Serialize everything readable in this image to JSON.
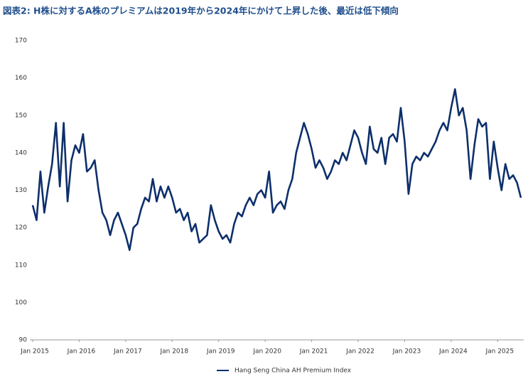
{
  "chart_data": {
    "type": "line",
    "title": "図表2: H株に対するA株のプレミアムは2019年から2024年にかけて上昇した後、最近は低下傾向",
    "x": [
      "2015-01",
      "2015-02",
      "2015-03",
      "2015-04",
      "2015-05",
      "2015-06",
      "2015-07",
      "2015-08",
      "2015-09",
      "2015-10",
      "2015-11",
      "2015-12",
      "2016-01",
      "2016-02",
      "2016-03",
      "2016-04",
      "2016-05",
      "2016-06",
      "2016-07",
      "2016-08",
      "2016-09",
      "2016-10",
      "2016-11",
      "2016-12",
      "2017-01",
      "2017-02",
      "2017-03",
      "2017-04",
      "2017-05",
      "2017-06",
      "2017-07",
      "2017-08",
      "2017-09",
      "2017-10",
      "2017-11",
      "2017-12",
      "2018-01",
      "2018-02",
      "2018-03",
      "2018-04",
      "2018-05",
      "2018-06",
      "2018-07",
      "2018-08",
      "2018-09",
      "2018-10",
      "2018-11",
      "2018-12",
      "2019-01",
      "2019-02",
      "2019-03",
      "2019-04",
      "2019-05",
      "2019-06",
      "2019-07",
      "2019-08",
      "2019-09",
      "2019-10",
      "2019-11",
      "2019-12",
      "2020-01",
      "2020-02",
      "2020-03",
      "2020-04",
      "2020-05",
      "2020-06",
      "2020-07",
      "2020-08",
      "2020-09",
      "2020-10",
      "2020-11",
      "2020-12",
      "2021-01",
      "2021-02",
      "2021-03",
      "2021-04",
      "2021-05",
      "2021-06",
      "2021-07",
      "2021-08",
      "2021-09",
      "2021-10",
      "2021-11",
      "2021-12",
      "2022-01",
      "2022-02",
      "2022-03",
      "2022-04",
      "2022-05",
      "2022-06",
      "2022-07",
      "2022-08",
      "2022-09",
      "2022-10",
      "2022-11",
      "2022-12",
      "2023-01",
      "2023-02",
      "2023-03",
      "2023-04",
      "2023-05",
      "2023-06",
      "2023-07",
      "2023-08",
      "2023-09",
      "2023-10",
      "2023-11",
      "2023-12",
      "2024-01",
      "2024-02",
      "2024-03",
      "2024-04",
      "2024-05",
      "2024-06",
      "2024-07",
      "2024-08",
      "2024-09",
      "2024-10",
      "2024-11",
      "2024-12",
      "2025-01",
      "2025-02",
      "2025-03",
      "2025-04",
      "2025-05",
      "2025-06",
      "2025-07"
    ],
    "series": [
      {
        "name": "Hang Seng China AH Premium Index",
        "color": "#0d2f6b",
        "values": [
          126,
          122,
          135,
          124,
          131,
          137,
          148,
          131,
          148,
          127,
          138,
          142,
          140,
          145,
          135,
          136,
          138,
          130,
          124,
          122,
          118,
          122,
          124,
          121,
          118,
          114,
          120,
          121,
          125,
          128,
          127,
          133,
          127,
          131,
          128,
          131,
          128,
          124,
          125,
          122,
          124,
          119,
          121,
          116,
          117,
          118,
          126,
          122,
          119,
          117,
          118,
          116,
          121,
          124,
          123,
          126,
          128,
          126,
          129,
          130,
          128,
          135,
          124,
          126,
          127,
          125,
          130,
          133,
          140,
          144,
          148,
          145,
          141,
          136,
          138,
          136,
          133,
          135,
          138,
          137,
          140,
          138,
          142,
          146,
          144,
          140,
          137,
          147,
          141,
          140,
          144,
          137,
          144,
          145,
          143,
          152,
          143,
          129,
          137,
          139,
          138,
          140,
          139,
          141,
          143,
          146,
          148,
          146,
          152,
          157,
          150,
          152,
          146,
          133,
          142,
          149,
          147,
          148,
          133,
          143,
          136,
          130,
          137,
          133,
          134,
          132,
          128
        ]
      }
    ],
    "xlim": [
      "2015-01",
      "2025-07"
    ],
    "xticks": [
      {
        "value": "2015-01",
        "label": "Jan 2015"
      },
      {
        "value": "2016-01",
        "label": "Jan 2016"
      },
      {
        "value": "2017-01",
        "label": "Jan 2017"
      },
      {
        "value": "2018-01",
        "label": "Jan 2018"
      },
      {
        "value": "2019-01",
        "label": "Jan 2019"
      },
      {
        "value": "2020-01",
        "label": "Jan 2020"
      },
      {
        "value": "2021-01",
        "label": "Jan 2021"
      },
      {
        "value": "2022-01",
        "label": "Jan 2022"
      },
      {
        "value": "2023-01",
        "label": "Jan 2023"
      },
      {
        "value": "2024-01",
        "label": "Jan 2024"
      },
      {
        "value": "2025-01",
        "label": "Jan 2025"
      }
    ],
    "ylim": [
      90,
      170
    ],
    "yticks": [
      90,
      100,
      110,
      120,
      130,
      140,
      150,
      160,
      170
    ],
    "grid": false,
    "legend": "bottom"
  }
}
